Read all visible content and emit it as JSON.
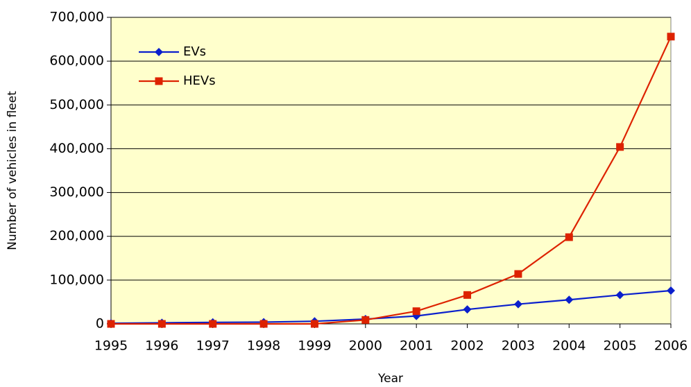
{
  "chart_data": {
    "type": "line",
    "x": [
      1995,
      1996,
      1997,
      1998,
      1999,
      2000,
      2001,
      2002,
      2003,
      2004,
      2005,
      2006
    ],
    "xlim": [
      1995,
      2006
    ],
    "xticks": [
      1995,
      1996,
      1997,
      1998,
      1999,
      2000,
      2001,
      2002,
      2003,
      2004,
      2005,
      2006
    ],
    "ylim": [
      0,
      700000
    ],
    "yticks": [
      0,
      {
        "value": 100000,
        "label": "100,000"
      },
      {
        "value": 200000,
        "label": "200,000"
      },
      {
        "value": 300000,
        "label": "300,000"
      },
      {
        "value": 400000,
        "label": "400,000"
      },
      {
        "value": 500000,
        "label": "500,000"
      },
      {
        "value": 600000,
        "label": "600,000"
      },
      {
        "value": 700000,
        "label": "700,000"
      }
    ],
    "x_label": "Year",
    "y_label": "Number of vehicles in fleet",
    "grid": true,
    "legend": "upper left",
    "plot_background": "#ffffcc",
    "series": [
      {
        "name": "EVs",
        "color": "#0a1fcc",
        "marker": "diamond",
        "values": [
          1500,
          2500,
          3500,
          4000,
          6000,
          11000,
          18000,
          33000,
          45000,
          55000,
          66000,
          76000
        ]
      },
      {
        "name": "HEVs",
        "color": "#dd2200",
        "marker": "square",
        "values": [
          0,
          0,
          0,
          0,
          0,
          9000,
          29000,
          66000,
          114000,
          198000,
          404000,
          656000
        ]
      }
    ]
  }
}
